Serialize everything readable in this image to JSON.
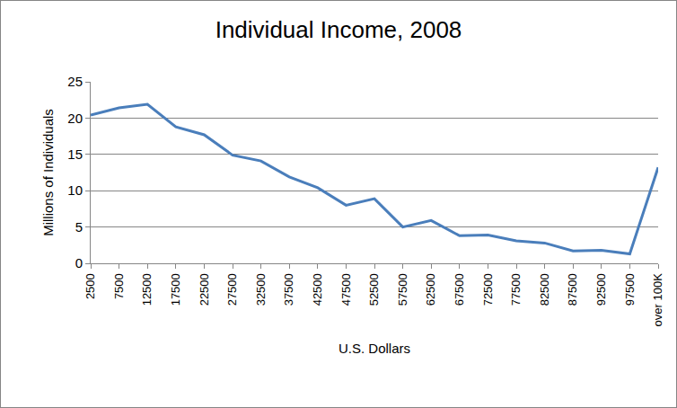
{
  "chart_data": {
    "type": "line",
    "title": "Individual Income, 2008",
    "x_label": "U.S. Dollars",
    "y_label": "Millions of Individuals",
    "categories": [
      "2500",
      "7500",
      "12500",
      "17500",
      "22500",
      "27500",
      "32500",
      "37500",
      "42500",
      "47500",
      "52500",
      "57500",
      "62500",
      "67500",
      "72500",
      "77500",
      "82500",
      "87500",
      "92500",
      "97500",
      "over 100K"
    ],
    "values": [
      20.4,
      21.4,
      21.9,
      18.8,
      17.7,
      14.9,
      14.1,
      11.9,
      10.4,
      8.0,
      8.9,
      5.0,
      5.9,
      3.8,
      3.9,
      3.1,
      2.8,
      1.7,
      1.8,
      1.3,
      13.2
    ],
    "color": "#4a7ebb",
    "ylim": [
      0,
      25
    ],
    "yticks": [
      0,
      5,
      10,
      15,
      20,
      25
    ],
    "grid": true
  }
}
